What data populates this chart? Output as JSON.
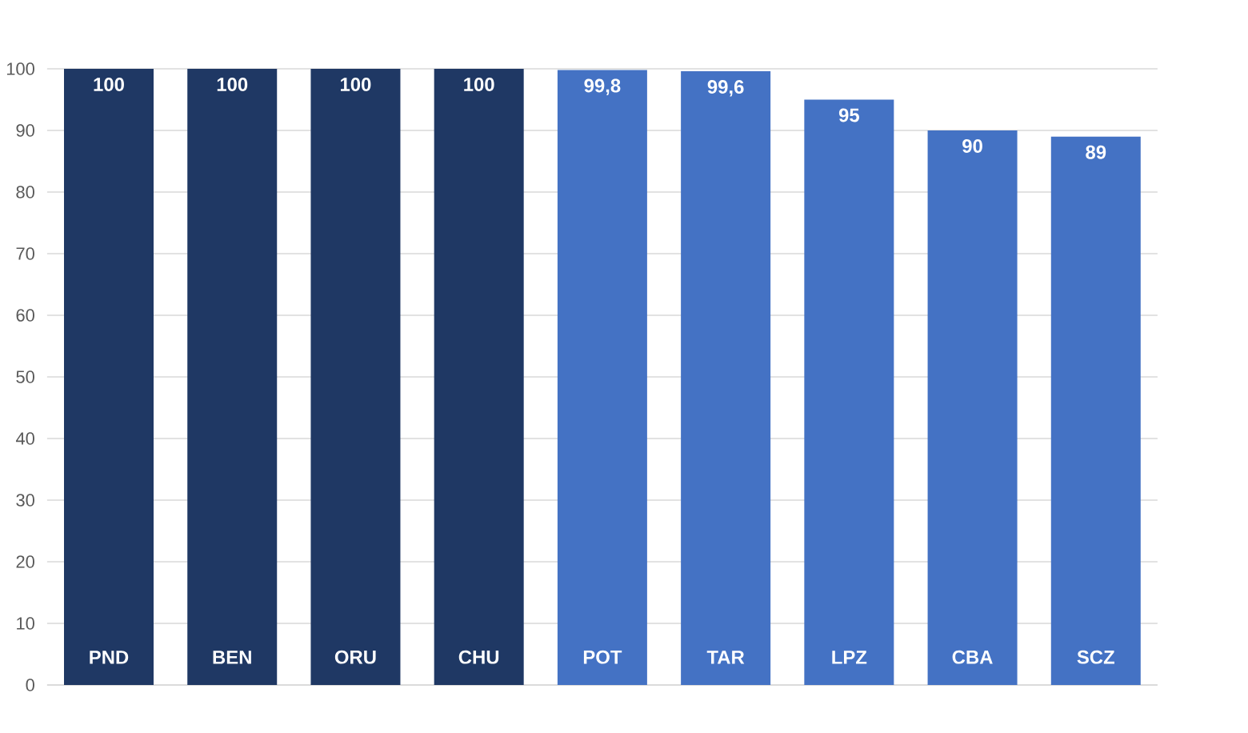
{
  "chart_data": {
    "type": "bar",
    "categories": [
      "PND",
      "BEN",
      "ORU",
      "CHU",
      "POT",
      "TAR",
      "LPZ",
      "CBA",
      "SCZ"
    ],
    "values": [
      100,
      100,
      100,
      100,
      99.8,
      99.6,
      95,
      90,
      89
    ],
    "value_labels": [
      "100",
      "100",
      "100",
      "100",
      "99,8",
      "99,6",
      "95",
      "90",
      "89"
    ],
    "colors": [
      "#1f3864",
      "#1f3864",
      "#1f3864",
      "#1f3864",
      "#4472c4",
      "#4472c4",
      "#4472c4",
      "#4472c4",
      "#4472c4"
    ],
    "ylim": [
      0,
      100
    ],
    "yticks": [
      0,
      10,
      20,
      30,
      40,
      50,
      60,
      70,
      80,
      90,
      100
    ],
    "grid": "y"
  }
}
